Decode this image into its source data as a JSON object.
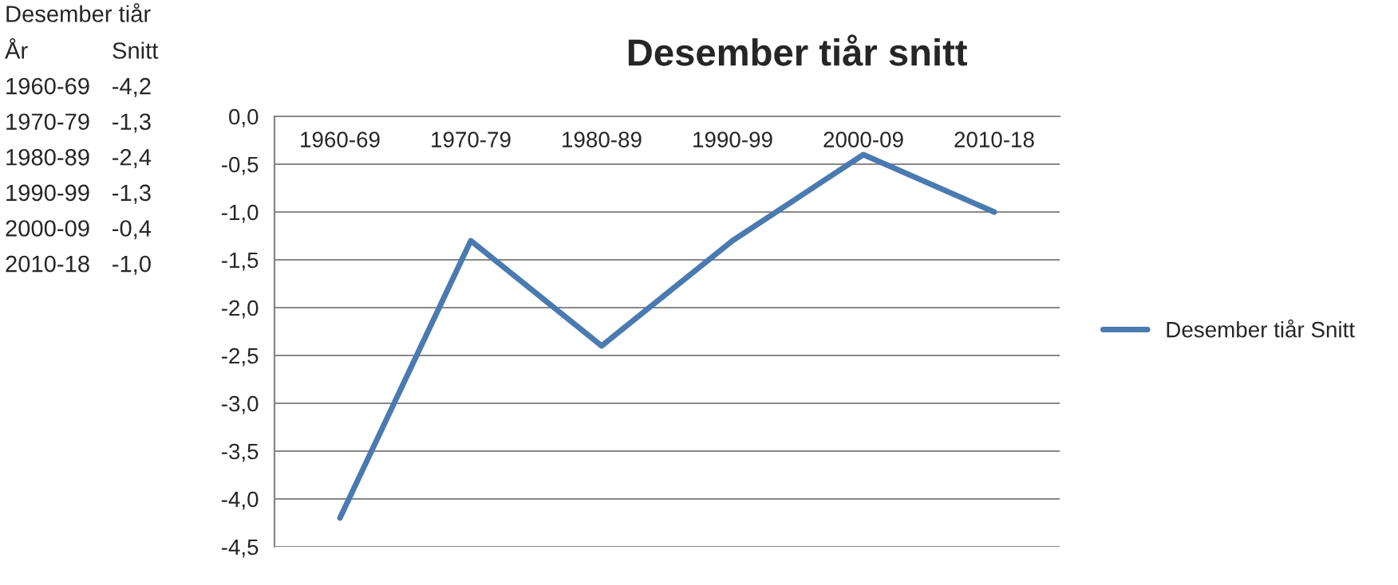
{
  "chart_data": [
    {
      "type": "other",
      "title": "Desember tiår",
      "annotations": [
        "År",
        "Snitt",
        "1960-69",
        "-4,2",
        "1970-79",
        "-1,3",
        "1980-89",
        "-2,4",
        "1990-99",
        "-1,3",
        "2000-09",
        "-0,4",
        "2010-18",
        "-1,0"
      ]
    },
    {
      "type": "line",
      "title": "Desember tiår snitt",
      "categories": [
        "1960-69",
        "1970-79",
        "1980-89",
        "1990-99",
        "2000-09",
        "2010-18"
      ],
      "series": [
        {
          "name": "Desember tiår Snitt",
          "color": "#4a7ab0",
          "values": [
            -4.2,
            -1.3,
            -2.4,
            -1.3,
            -0.4,
            -1.0
          ]
        }
      ],
      "ylim": [
        -4.5,
        0
      ],
      "yticks": [
        {
          "value": 0,
          "label": "0,0"
        },
        {
          "value": -0.5,
          "label": "-0,5"
        },
        {
          "value": -1.0,
          "label": "-1,0"
        },
        {
          "value": -1.5,
          "label": "-1,5"
        },
        {
          "value": -2.0,
          "label": "-2,0"
        },
        {
          "value": -2.5,
          "label": "-2,5"
        },
        {
          "value": -3.0,
          "label": "-3,0"
        },
        {
          "value": -3.5,
          "label": "-3,5"
        },
        {
          "value": -4.0,
          "label": "-4,0"
        },
        {
          "value": -4.5,
          "label": "-4,5"
        }
      ],
      "grid": "y",
      "legend": "right",
      "marker": "none",
      "line_style": "solid"
    }
  ]
}
